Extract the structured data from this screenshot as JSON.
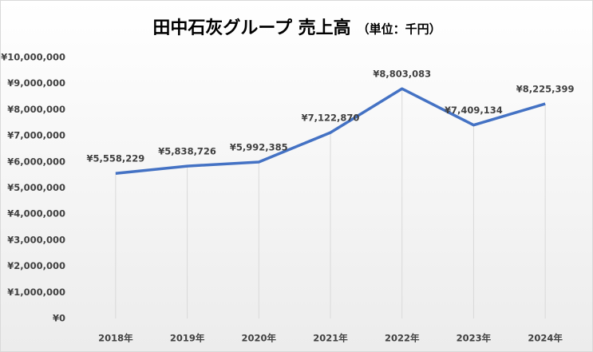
{
  "chart_data": {
    "type": "line",
    "title": "田中石灰グループ 売上高",
    "subtitle": "（単位：千円）",
    "categories": [
      "2018年",
      "2019年",
      "2020年",
      "2021年",
      "2022年",
      "2023年",
      "2024年"
    ],
    "series": [
      {
        "name": "売上高",
        "color": "#4472c4",
        "values": [
          5558229,
          5838726,
          5992385,
          7122870,
          8803083,
          7409134,
          8225399
        ],
        "value_labels": [
          "¥5,558,229",
          "¥5,838,726",
          "¥5,992,385",
          "¥7,122,870",
          "¥8,803,083",
          "¥7,409,134",
          "¥8,225,399"
        ]
      }
    ],
    "ylim": [
      0,
      10000000
    ],
    "yticks": [
      {
        "value": 0,
        "label": "¥0"
      },
      {
        "value": 1000000,
        "label": "¥1,000,000"
      },
      {
        "value": 2000000,
        "label": "¥2,000,000"
      },
      {
        "value": 3000000,
        "label": "¥3,000,000"
      },
      {
        "value": 4000000,
        "label": "¥4,000,000"
      },
      {
        "value": 5000000,
        "label": "¥5,000,000"
      },
      {
        "value": 6000000,
        "label": "¥6,000,000"
      },
      {
        "value": 7000000,
        "label": "¥7,000,000"
      },
      {
        "value": 8000000,
        "label": "¥8,000,000"
      },
      {
        "value": 9000000,
        "label": "¥9,000,000"
      },
      {
        "value": 10000000,
        "label": "¥10,000,000"
      }
    ],
    "drop_lines": true
  }
}
